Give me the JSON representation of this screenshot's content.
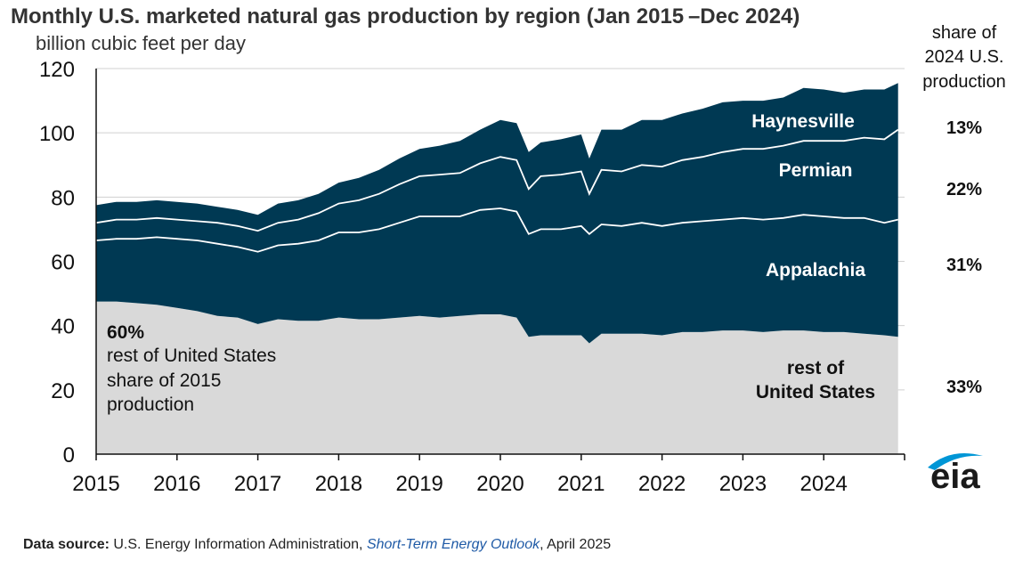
{
  "chart_data": {
    "type": "area",
    "stacked": true,
    "title": "Monthly U.S. marketed natural gas production by region (Jan 2015 –Dec 2024)",
    "subtitle": "billion cubic feet per day",
    "ylim": [
      0,
      120
    ],
    "yticks": [
      0,
      20,
      40,
      60,
      80,
      100,
      120
    ],
    "xlim": [
      2015,
      2025
    ],
    "xticks": [
      "2015",
      "2016",
      "2017",
      "2018",
      "2019",
      "2020",
      "2021",
      "2022",
      "2023",
      "2024"
    ],
    "x": [
      2015.0,
      2015.25,
      2015.5,
      2015.75,
      2016.0,
      2016.25,
      2016.5,
      2016.75,
      2017.0,
      2017.25,
      2017.5,
      2017.75,
      2018.0,
      2018.25,
      2018.5,
      2018.75,
      2019.0,
      2019.25,
      2019.5,
      2019.75,
      2020.0,
      2020.2,
      2020.35,
      2020.5,
      2020.75,
      2021.0,
      2021.1,
      2021.25,
      2021.5,
      2021.75,
      2022.0,
      2022.25,
      2022.5,
      2022.75,
      2023.0,
      2023.25,
      2023.5,
      2023.75,
      2024.0,
      2024.25,
      2024.5,
      2024.75,
      2024.92
    ],
    "series": [
      {
        "name": "rest of United States",
        "color": "#d9d9d9",
        "values": [
          47.5,
          47.5,
          47.0,
          46.5,
          45.5,
          44.5,
          43.0,
          42.5,
          40.5,
          42.0,
          41.5,
          41.5,
          42.5,
          42.0,
          42.0,
          42.5,
          43.0,
          42.5,
          43.0,
          43.5,
          43.5,
          42.5,
          36.5,
          37.0,
          37.0,
          37.0,
          34.5,
          37.5,
          37.5,
          37.5,
          37.0,
          38.0,
          38.0,
          38.5,
          38.5,
          38.0,
          38.5,
          38.5,
          38.0,
          38.0,
          37.5,
          37.0,
          36.5
        ]
      },
      {
        "name": "Appalachia",
        "color": "#003953",
        "values": [
          19.0,
          19.5,
          20.0,
          21.0,
          21.5,
          22.0,
          22.5,
          22.0,
          22.5,
          23.0,
          24.0,
          25.0,
          26.5,
          27.0,
          28.0,
          29.5,
          31.0,
          31.5,
          31.0,
          32.5,
          33.0,
          33.0,
          32.0,
          33.0,
          33.0,
          34.0,
          34.0,
          34.0,
          33.5,
          34.5,
          34.0,
          34.0,
          34.5,
          34.5,
          35.0,
          35.0,
          35.0,
          36.0,
          36.0,
          35.5,
          36.0,
          35.0,
          36.5
        ]
      },
      {
        "name": "Permian",
        "color": "#003953",
        "values": [
          5.5,
          6.0,
          6.0,
          6.0,
          6.0,
          6.0,
          6.5,
          6.5,
          6.5,
          7.0,
          7.5,
          8.5,
          9.0,
          10.0,
          11.0,
          12.0,
          12.5,
          13.0,
          13.5,
          14.5,
          16.0,
          16.0,
          14.0,
          16.5,
          17.0,
          17.0,
          12.5,
          17.0,
          17.0,
          18.0,
          18.5,
          19.5,
          20.0,
          21.0,
          21.5,
          22.0,
          22.5,
          23.0,
          23.5,
          24.0,
          25.0,
          26.0,
          28.0
        ]
      },
      {
        "name": "Haynesville",
        "color": "#003953",
        "values": [
          5.5,
          5.5,
          5.5,
          5.5,
          5.5,
          5.5,
          5.0,
          5.0,
          5.0,
          6.0,
          6.0,
          6.0,
          6.5,
          7.0,
          7.5,
          8.0,
          8.5,
          9.0,
          10.0,
          10.5,
          11.5,
          11.5,
          11.5,
          10.5,
          11.0,
          11.5,
          11.0,
          12.5,
          13.0,
          14.0,
          14.5,
          14.5,
          15.0,
          15.5,
          15.0,
          15.0,
          15.0,
          16.5,
          16.0,
          15.0,
          15.0,
          15.5,
          14.5
        ]
      }
    ],
    "area_labels": [
      "Haynesville",
      "Permian",
      "Appalachia",
      "rest of",
      "United States"
    ],
    "share_header": [
      "share of",
      "2024 U.S.",
      "production"
    ],
    "shares_2024": [
      "13%",
      "22%",
      "31%",
      "33%"
    ],
    "note": {
      "value": "60%",
      "lines": [
        "rest of United States",
        "share of 2015",
        "production"
      ]
    }
  },
  "source": {
    "label": "Data source:",
    "text": " U.S. Energy Information Administration, ",
    "publication": "Short-Term Energy Outlook",
    "date": ", April 2025"
  },
  "logo": {
    "text": "eia",
    "colors": [
      "#0096d6",
      "#1a1a1a"
    ]
  }
}
